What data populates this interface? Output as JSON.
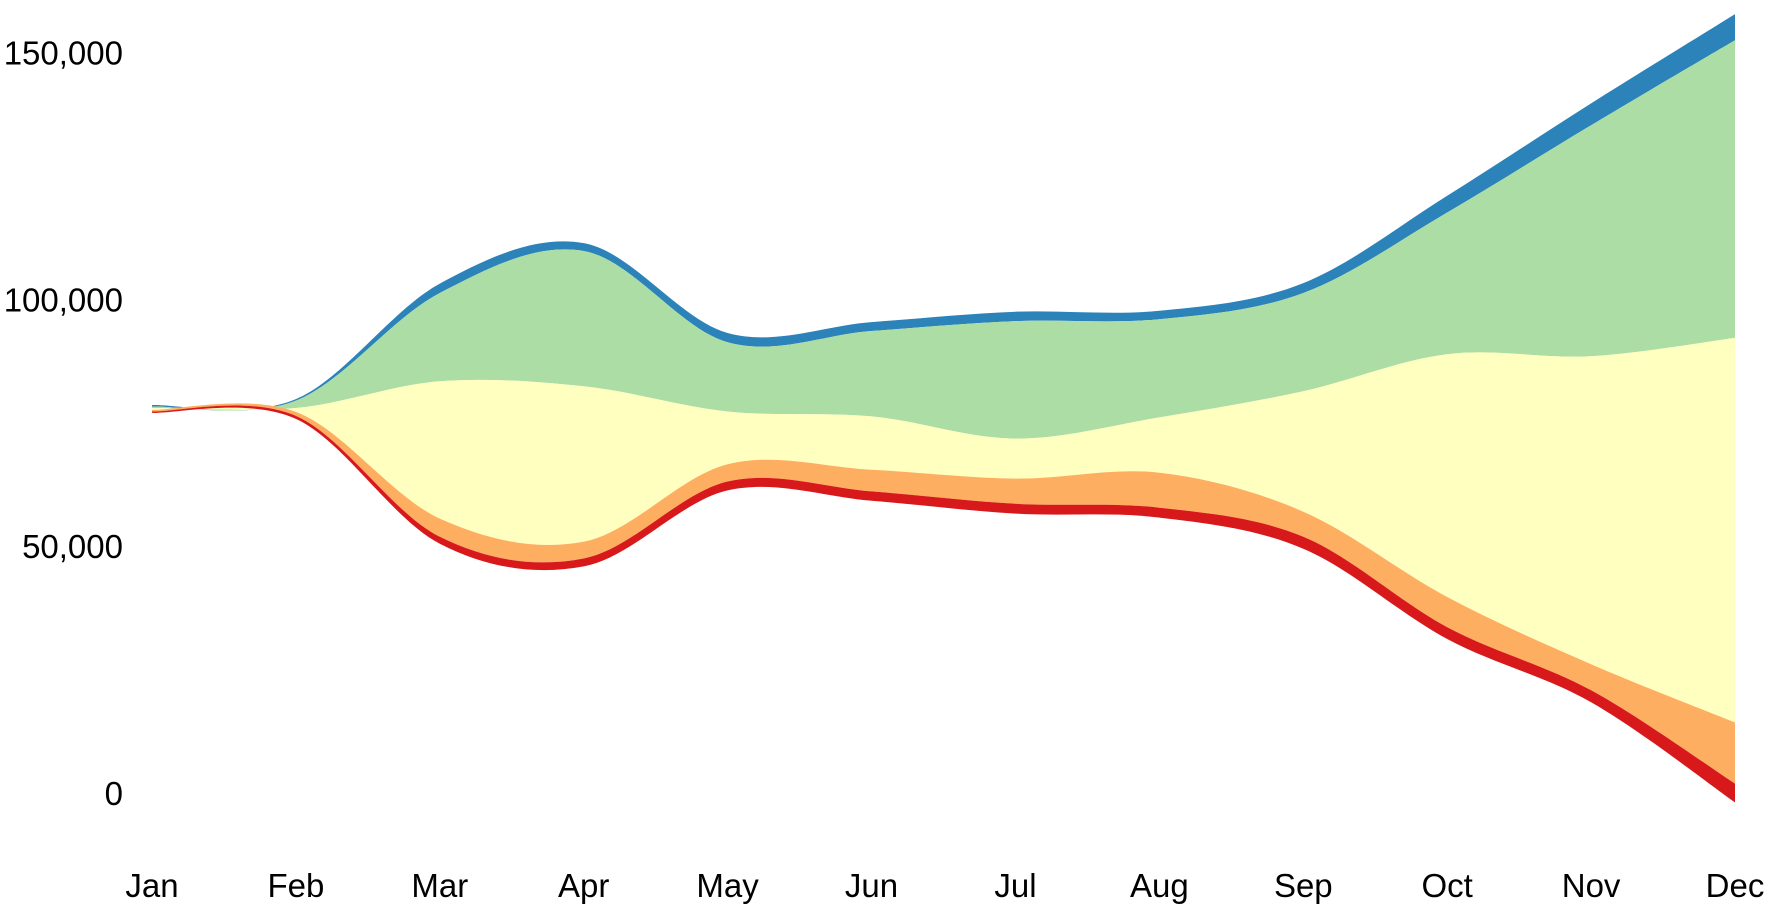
{
  "chart_data": {
    "type": "area",
    "subtype": "fan-chart-stacked-percentile-bands",
    "title": "",
    "xlabel": "",
    "ylabel": "",
    "legend": false,
    "gridlines": false,
    "background_color": "#ffffff",
    "axis_text_color": "#000000",
    "categories": [
      "Jan",
      "Feb",
      "Mar",
      "Apr",
      "May",
      "Jun",
      "Jul",
      "Aug",
      "Sep",
      "Oct",
      "Nov",
      "Dec"
    ],
    "y_ticks": [
      {
        "value": 0,
        "label": "0"
      },
      {
        "value": 50000,
        "label": "50,000"
      },
      {
        "value": 100000,
        "label": "100,000"
      },
      {
        "value": 150000,
        "label": "150,000"
      }
    ],
    "ylim": [
      -5000,
      160000
    ],
    "boundaries": {
      "b0": [
        78700,
        79900,
        103300,
        111500,
        93300,
        95500,
        97600,
        97800,
        103400,
        121100,
        139800,
        157900
      ],
      "b1": [
        78400,
        79600,
        101400,
        109900,
        91400,
        93700,
        95700,
        96100,
        101400,
        117700,
        135400,
        152600
      ],
      "b2": [
        78100,
        78100,
        83500,
        82500,
        77400,
        76400,
        71900,
        76200,
        81500,
        89000,
        88600,
        92300
      ],
      "b3": [
        77700,
        77300,
        55700,
        51000,
        66700,
        65600,
        63800,
        65000,
        57100,
        39800,
        26200,
        14400
      ],
      "b4": [
        77400,
        76500,
        52000,
        47600,
        63200,
        61200,
        58700,
        57900,
        52000,
        33700,
        20900,
        2000
      ],
      "b5": [
        77100,
        75900,
        50600,
        46000,
        61400,
        59300,
        56700,
        55900,
        49600,
        31300,
        18500,
        -1800
      ]
    },
    "bands": [
      {
        "name": "blue-upper-edge-band",
        "color": "#2b83ba",
        "upper": "b0",
        "lower": "b1"
      },
      {
        "name": "green-band",
        "color": "#abdda4",
        "upper": "b1",
        "lower": "b2"
      },
      {
        "name": "yellow-middle-band",
        "color": "#ffffbf",
        "upper": "b2",
        "lower": "b3"
      },
      {
        "name": "orange-band",
        "color": "#fdae61",
        "upper": "b3",
        "lower": "b4"
      },
      {
        "name": "red-lower-edge-band",
        "color": "#d7191c",
        "upper": "b4",
        "lower": "b5"
      }
    ]
  }
}
